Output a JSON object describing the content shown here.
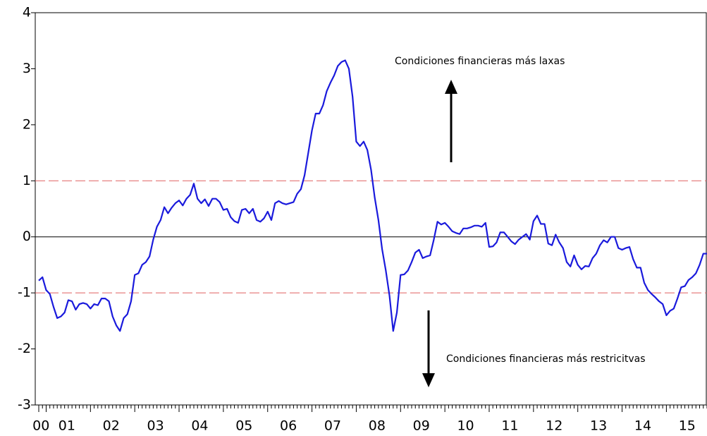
{
  "chart_data": {
    "type": "line",
    "categories": [
      "00",
      null,
      "01",
      null,
      null,
      null,
      null,
      null,
      null,
      null,
      null,
      null,
      null,
      null,
      "02",
      null,
      null,
      null,
      null,
      null,
      null,
      null,
      null,
      null,
      null,
      null,
      "03",
      null,
      null,
      null,
      null,
      null,
      null,
      null,
      null,
      null,
      null,
      null,
      "04",
      null,
      null,
      null,
      null,
      null,
      null,
      null,
      null,
      null,
      null,
      null,
      "05",
      null,
      null,
      null,
      null,
      null,
      null,
      null,
      null,
      null,
      null,
      null,
      "06",
      null,
      null,
      null,
      null,
      null,
      null,
      null,
      null,
      null,
      null,
      null,
      "07",
      null,
      null,
      null,
      null,
      null,
      null,
      null,
      null,
      null,
      null,
      null,
      "08",
      null,
      null,
      null,
      null,
      null,
      null,
      null,
      null,
      null,
      null,
      null,
      "09",
      null,
      null,
      null,
      null,
      null,
      null,
      null,
      null,
      null,
      null,
      null,
      "10",
      null,
      null,
      null,
      null,
      null,
      null,
      null,
      null,
      null,
      null,
      null,
      "11",
      null,
      null,
      null,
      null,
      null,
      null,
      null,
      null,
      null,
      null,
      null,
      "12",
      null,
      null,
      null,
      null,
      null,
      null,
      null,
      null,
      null,
      null,
      null,
      "13",
      null,
      null,
      null,
      null,
      null,
      null,
      null,
      null,
      null,
      null,
      null,
      "14",
      null,
      null,
      null,
      null,
      null,
      null,
      null,
      null,
      null,
      null,
      null,
      "15",
      null,
      null,
      null,
      null,
      null,
      null,
      null,
      null,
      null,
      null,
      null
    ],
    "series": [
      {
        "color": "#1a1adc",
        "values": [
          -0.78,
          -0.72,
          -0.95,
          -1.02,
          -1.25,
          -1.45,
          -1.42,
          -1.35,
          -1.13,
          -1.15,
          -1.3,
          -1.2,
          -1.18,
          -1.2,
          -1.28,
          -1.2,
          -1.22,
          -1.1,
          -1.1,
          -1.15,
          -1.42,
          -1.58,
          -1.68,
          -1.45,
          -1.38,
          -1.15,
          -0.68,
          -0.65,
          -0.5,
          -0.45,
          -0.35,
          -0.05,
          0.18,
          0.3,
          0.53,
          0.42,
          0.52,
          0.6,
          0.65,
          0.56,
          0.68,
          0.75,
          0.95,
          0.68,
          0.6,
          0.67,
          0.55,
          0.68,
          0.68,
          0.62,
          0.48,
          0.5,
          0.35,
          0.28,
          0.25,
          0.48,
          0.5,
          0.42,
          0.5,
          0.3,
          0.27,
          0.33,
          0.45,
          0.3,
          0.6,
          0.64,
          0.6,
          0.58,
          0.6,
          0.62,
          0.77,
          0.85,
          1.1,
          1.5,
          1.9,
          2.2,
          2.2,
          2.35,
          2.6,
          2.75,
          2.88,
          3.05,
          3.12,
          3.15,
          3.0,
          2.5,
          1.7,
          1.62,
          1.7,
          1.55,
          1.2,
          0.7,
          0.3,
          -0.22,
          -0.6,
          -1.05,
          -1.68,
          -1.35,
          -0.68,
          -0.67,
          -0.6,
          -0.45,
          -0.28,
          -0.23,
          -0.38,
          -0.35,
          -0.33,
          -0.05,
          0.27,
          0.22,
          0.25,
          0.18,
          0.1,
          0.07,
          0.05,
          0.15,
          0.15,
          0.17,
          0.2,
          0.2,
          0.18,
          0.25,
          -0.18,
          -0.17,
          -0.1,
          0.08,
          0.08,
          0.0,
          -0.08,
          -0.13,
          -0.05,
          0.0,
          0.05,
          -0.05,
          0.28,
          0.38,
          0.23,
          0.23,
          -0.12,
          -0.15,
          0.04,
          -0.1,
          -0.2,
          -0.45,
          -0.53,
          -0.33,
          -0.5,
          -0.58,
          -0.52,
          -0.53,
          -0.38,
          -0.3,
          -0.15,
          -0.06,
          -0.1,
          0.0,
          0.0,
          -0.2,
          -0.23,
          -0.2,
          -0.18,
          -0.4,
          -0.55,
          -0.55,
          -0.82,
          -0.95,
          -1.02,
          -1.08,
          -1.15,
          -1.2,
          -1.4,
          -1.32,
          -1.28,
          -1.1,
          -0.9,
          -0.88,
          -0.77,
          -0.72,
          -0.65,
          -0.5,
          -0.3,
          -0.3
        ]
      }
    ],
    "ylim": [
      -3,
      4
    ],
    "yticks": [
      -3,
      -2,
      -1,
      0,
      1,
      2,
      3,
      4
    ],
    "reference_lines": [
      {
        "value": 1,
        "color": "#e06060",
        "dashed": true
      },
      {
        "value": 0,
        "color": "#000000",
        "dashed": false
      },
      {
        "value": -1,
        "color": "#e06060",
        "dashed": true
      }
    ],
    "annotations": [
      "Condiciones financieras más laxas",
      "Condiciones financieras más restricitvas"
    ]
  }
}
